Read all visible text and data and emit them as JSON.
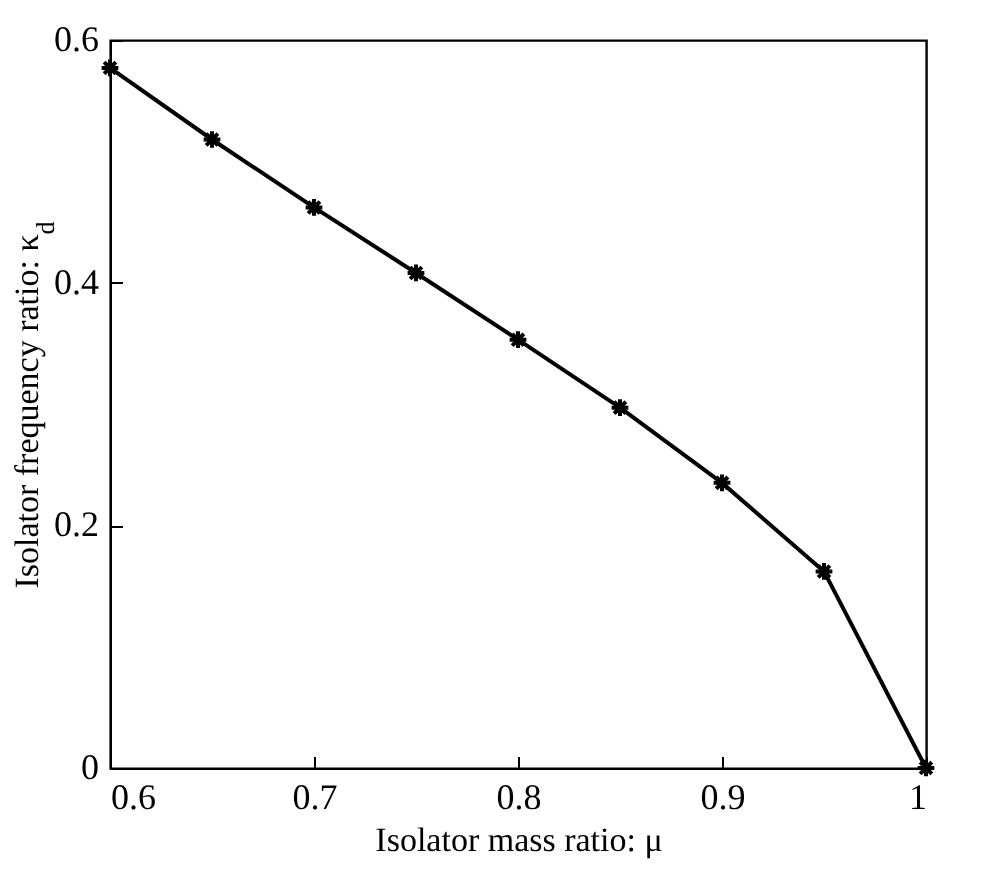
{
  "chart_data": {
    "type": "line",
    "xlabel": "Isolator mass ratio: μ",
    "ylabel": "Isolator frequency ratio: κ$_{d}$",
    "x": [
      0.6,
      0.65,
      0.7,
      0.75,
      0.8,
      0.85,
      0.9,
      0.95,
      1.0
    ],
    "series": [
      {
        "color": "#000000",
        "values": [
          0.577,
          0.518,
          0.462,
          0.408,
          0.353,
          0.297,
          0.235,
          0.162,
          0
        ]
      }
    ],
    "xlim": [
      0.6,
      1
    ],
    "xticks": [
      0.6,
      0.7,
      0.8,
      0.9,
      1
    ],
    "ylim": [
      0,
      0.6
    ],
    "yticks": [
      0,
      0.2,
      0.4,
      0.6
    ],
    "marker": "cross",
    "line_style": "solid",
    "grid": false,
    "legend": false
  }
}
